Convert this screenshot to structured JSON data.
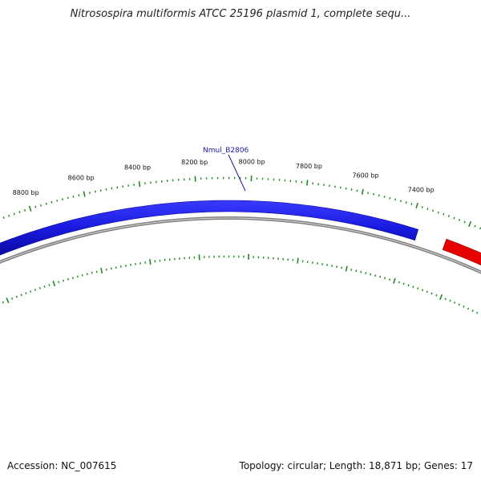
{
  "title": "Nitrosospira multiformis ATCC 25196 plasmid 1, complete sequ...",
  "ticks": [
    {
      "bp": 7400,
      "label": "7400 bp"
    },
    {
      "bp": 7600,
      "label": "7600 bp"
    },
    {
      "bp": 7800,
      "label": "7800 bp"
    },
    {
      "bp": 8000,
      "label": "8000 bp"
    },
    {
      "bp": 8200,
      "label": "8200 bp"
    },
    {
      "bp": 8400,
      "label": "8400 bp"
    },
    {
      "bp": 8600,
      "label": "8600 bp"
    },
    {
      "bp": 8800,
      "label": "8800 bp"
    }
  ],
  "gene_label": "Nmul_B2806",
  "accession": "Accession: NC_007615",
  "topology": "Topology: circular; Length: 18,871 bp; Genes: 17",
  "colors": {
    "gene_forward": "#1414e6",
    "gene_reverse": "#e60000",
    "backbone": "#808080",
    "ticks": "#1f8a1f"
  }
}
